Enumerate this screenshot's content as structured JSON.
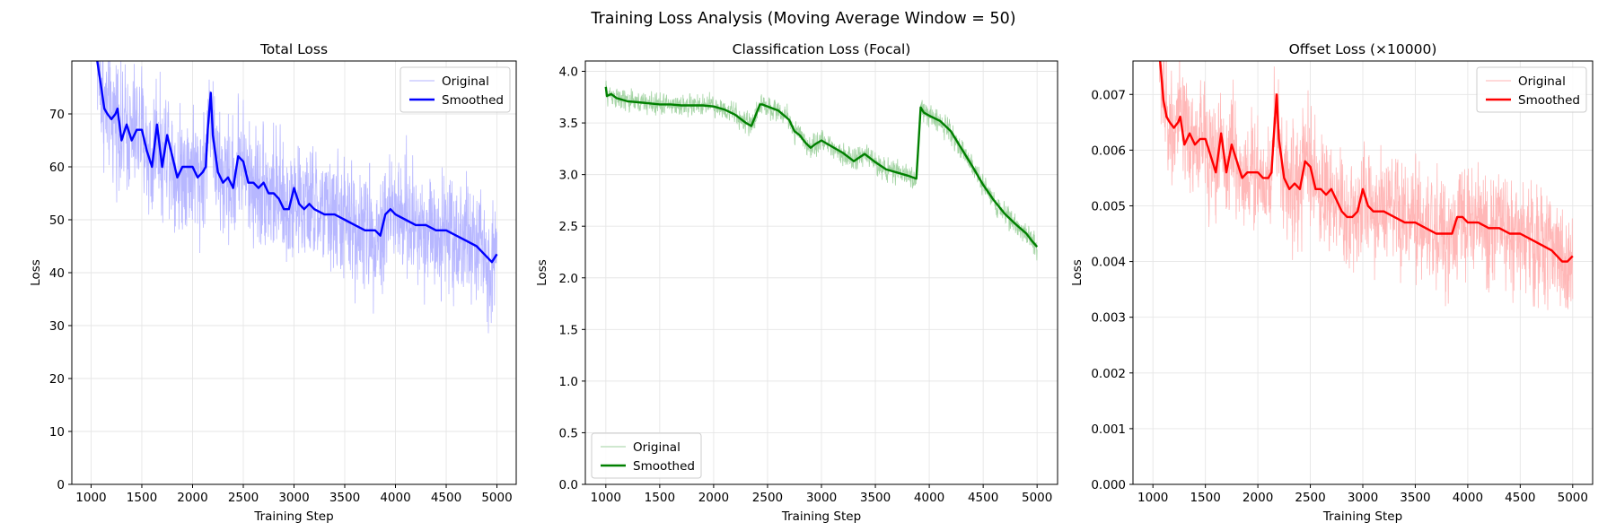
{
  "figure_title": "Training Loss Analysis (Moving Average Window = 50)",
  "chart_data": [
    {
      "type": "line",
      "title": "Total Loss",
      "xlabel": "Training Step",
      "ylabel": "Loss",
      "xlim": [
        810,
        5190
      ],
      "ylim": [
        0,
        80
      ],
      "xticks": [
        1000,
        1500,
        2000,
        2500,
        3000,
        3500,
        4000,
        4500,
        5000
      ],
      "yticks": [
        0,
        10,
        20,
        30,
        40,
        50,
        60,
        70
      ],
      "ytick_labels": [
        "0",
        "10",
        "20",
        "30",
        "40",
        "50",
        "60",
        "70"
      ],
      "grid": true,
      "legend_position": "upper right",
      "color": "#0000ff",
      "series": [
        {
          "name": "Original",
          "kind": "raw",
          "noise": 6.5
        },
        {
          "name": "Smoothed",
          "kind": "smoothed",
          "x": [
            1060,
            1100,
            1130,
            1160,
            1200,
            1240,
            1260,
            1300,
            1350,
            1400,
            1450,
            1500,
            1550,
            1600,
            1650,
            1700,
            1750,
            1800,
            1850,
            1900,
            1950,
            2000,
            2050,
            2100,
            2130,
            2150,
            2180,
            2200,
            2250,
            2300,
            2350,
            2400,
            2450,
            2500,
            2550,
            2600,
            2650,
            2700,
            2750,
            2800,
            2850,
            2900,
            2950,
            3000,
            3050,
            3100,
            3150,
            3200,
            3300,
            3400,
            3500,
            3600,
            3700,
            3800,
            3850,
            3900,
            3950,
            4000,
            4100,
            4200,
            4300,
            4400,
            4500,
            4600,
            4700,
            4800,
            4900,
            4950,
            5000
          ],
          "y": [
            80,
            75,
            71,
            70,
            69,
            70,
            71,
            65,
            68,
            65,
            67,
            67,
            63,
            60,
            68,
            60,
            66,
            62,
            58,
            60,
            60,
            60,
            58,
            59,
            60,
            67,
            74,
            66,
            59,
            57,
            58,
            56,
            62,
            61,
            57,
            57,
            56,
            57,
            55,
            55,
            54,
            52,
            52,
            56,
            53,
            52,
            53,
            52,
            51,
            51,
            50,
            49,
            48,
            48,
            47,
            51,
            52,
            51,
            50,
            49,
            49,
            48,
            48,
            47,
            46,
            45,
            43,
            42,
            43.5
          ]
        }
      ]
    },
    {
      "type": "line",
      "title": "Classification Loss (Focal)",
      "xlabel": "Training Step",
      "ylabel": "Loss",
      "xlim": [
        810,
        5190
      ],
      "ylim": [
        0,
        4.1
      ],
      "xticks": [
        1000,
        1500,
        2000,
        2500,
        3000,
        3500,
        4000,
        4500,
        5000
      ],
      "yticks": [
        0,
        0.5,
        1.0,
        1.5,
        2.0,
        2.5,
        3.0,
        3.5,
        4.0
      ],
      "ytick_labels": [
        "0.0",
        "0.5",
        "1.0",
        "1.5",
        "2.0",
        "2.5",
        "3.0",
        "3.5",
        "4.0"
      ],
      "grid": true,
      "legend_position": "lower left",
      "color": "#008000",
      "series": [
        {
          "name": "Original",
          "kind": "raw",
          "noise": 0.06
        },
        {
          "name": "Smoothed",
          "kind": "smoothed",
          "x": [
            1000,
            1010,
            1050,
            1100,
            1200,
            1300,
            1400,
            1500,
            1600,
            1700,
            1800,
            1900,
            2000,
            2100,
            2200,
            2300,
            2350,
            2400,
            2430,
            2450,
            2500,
            2600,
            2700,
            2750,
            2800,
            2850,
            2900,
            2950,
            3000,
            3100,
            3200,
            3300,
            3400,
            3500,
            3600,
            3700,
            3800,
            3880,
            3900,
            3920,
            3950,
            4000,
            4100,
            4200,
            4300,
            4400,
            4500,
            4600,
            4700,
            4800,
            4900,
            4950,
            5000
          ],
          "y": [
            3.85,
            3.76,
            3.78,
            3.74,
            3.71,
            3.7,
            3.69,
            3.68,
            3.68,
            3.67,
            3.67,
            3.67,
            3.66,
            3.63,
            3.58,
            3.5,
            3.47,
            3.6,
            3.68,
            3.68,
            3.66,
            3.62,
            3.53,
            3.42,
            3.38,
            3.31,
            3.26,
            3.3,
            3.33,
            3.27,
            3.21,
            3.13,
            3.2,
            3.12,
            3.05,
            3.02,
            2.99,
            2.96,
            3.3,
            3.65,
            3.6,
            3.57,
            3.52,
            3.42,
            3.25,
            3.08,
            2.9,
            2.75,
            2.62,
            2.52,
            2.43,
            2.36,
            2.3
          ]
        }
      ]
    },
    {
      "type": "line",
      "title": "Offset Loss (×10000)",
      "xlabel": "Training Step",
      "ylabel": "Loss",
      "xlim": [
        810,
        5190
      ],
      "ylim": [
        0,
        0.0076
      ],
      "xticks": [
        1000,
        1500,
        2000,
        2500,
        3000,
        3500,
        4000,
        4500,
        5000
      ],
      "yticks": [
        0,
        0.001,
        0.002,
        0.003,
        0.004,
        0.005,
        0.006,
        0.007
      ],
      "ytick_labels": [
        "0.000",
        "0.001",
        "0.002",
        "0.003",
        "0.004",
        "0.005",
        "0.006",
        "0.007"
      ],
      "grid": true,
      "legend_position": "upper right",
      "color": "#ff0000",
      "series": [
        {
          "name": "Original",
          "kind": "raw",
          "noise": 0.00058
        },
        {
          "name": "Smoothed",
          "kind": "smoothed",
          "x": [
            1060,
            1100,
            1130,
            1160,
            1200,
            1240,
            1260,
            1300,
            1350,
            1400,
            1450,
            1500,
            1550,
            1600,
            1650,
            1700,
            1750,
            1800,
            1850,
            1900,
            1950,
            2000,
            2050,
            2100,
            2130,
            2150,
            2180,
            2200,
            2250,
            2300,
            2350,
            2400,
            2450,
            2500,
            2550,
            2600,
            2650,
            2700,
            2750,
            2800,
            2850,
            2900,
            2950,
            3000,
            3050,
            3100,
            3150,
            3200,
            3300,
            3400,
            3500,
            3600,
            3700,
            3800,
            3850,
            3900,
            3950,
            4000,
            4100,
            4200,
            4300,
            4400,
            4500,
            4600,
            4700,
            4800,
            4900,
            4950,
            5000
          ],
          "y": [
            0.0078,
            0.0069,
            0.0066,
            0.0065,
            0.0064,
            0.0065,
            0.0066,
            0.0061,
            0.0063,
            0.0061,
            0.0062,
            0.0062,
            0.0059,
            0.0056,
            0.0063,
            0.0056,
            0.0061,
            0.0058,
            0.0055,
            0.0056,
            0.0056,
            0.0056,
            0.0055,
            0.0055,
            0.0056,
            0.0062,
            0.007,
            0.0062,
            0.0055,
            0.0053,
            0.0054,
            0.0053,
            0.0058,
            0.0057,
            0.0053,
            0.0053,
            0.0052,
            0.0053,
            0.0051,
            0.0049,
            0.0048,
            0.0048,
            0.0049,
            0.0053,
            0.005,
            0.0049,
            0.0049,
            0.0049,
            0.0048,
            0.0047,
            0.0047,
            0.0046,
            0.0045,
            0.0045,
            0.0045,
            0.0048,
            0.0048,
            0.0047,
            0.0047,
            0.0046,
            0.0046,
            0.0045,
            0.0045,
            0.0044,
            0.0043,
            0.0042,
            0.004,
            0.004,
            0.0041
          ]
        }
      ]
    }
  ]
}
